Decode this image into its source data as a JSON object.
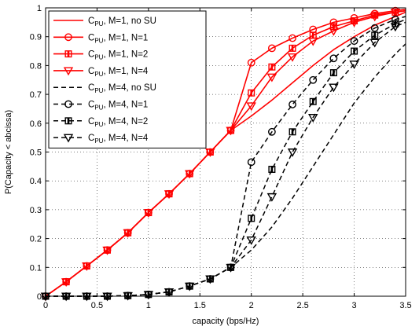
{
  "chart_data": {
    "type": "line",
    "xlabel": "capacity (bps/Hz)",
    "ylabel": "P(Capacity < abcissa)",
    "xlim": [
      0,
      3.5
    ],
    "ylim": [
      0,
      1
    ],
    "xticks": [
      0,
      0.5,
      1,
      1.5,
      2,
      2.5,
      3,
      3.5
    ],
    "xtick_labels": [
      "0",
      "0.5",
      "1",
      "1.5",
      "2",
      "2.5",
      "3",
      "3.5"
    ],
    "yticks": [
      0,
      0.1,
      0.2,
      0.3,
      0.4,
      0.5,
      0.6,
      0.7,
      0.8,
      0.9,
      1
    ],
    "ytick_labels": [
      "0",
      "0.1",
      "0.2",
      "0.3",
      "0.4",
      "0.5",
      "0.6",
      "0.7",
      "0.8",
      "0.9",
      "1"
    ],
    "grid": true,
    "legend_position": "top-left",
    "series": [
      {
        "name": "C_PU, M=1, no SU",
        "label_main": "C",
        "label_sub": "PU",
        "label_rest": ", M=1, no SU",
        "color": "#ff0000",
        "dash": "solid",
        "marker": "none",
        "x": [
          0,
          0.2,
          0.4,
          0.6,
          0.8,
          1.0,
          1.2,
          1.4,
          1.6,
          1.8,
          2.0,
          2.2,
          2.4,
          2.6,
          2.8,
          3.0,
          3.2,
          3.4,
          3.5
        ],
        "y": [
          0,
          0.05,
          0.105,
          0.16,
          0.22,
          0.29,
          0.355,
          0.425,
          0.5,
          0.575,
          0.625,
          0.68,
          0.74,
          0.8,
          0.855,
          0.9,
          0.94,
          0.97,
          0.985
        ]
      },
      {
        "name": "C_PU, M=1, N=1",
        "label_main": "C",
        "label_sub": "PU",
        "label_rest": ", M=1, N=1",
        "color": "#ff0000",
        "dash": "solid",
        "marker": "circle",
        "x": [
          0,
          0.2,
          0.4,
          0.6,
          0.8,
          1.0,
          1.2,
          1.4,
          1.6,
          1.8,
          2.0,
          2.2,
          2.4,
          2.6,
          2.8,
          3.0,
          3.2,
          3.4,
          3.5
        ],
        "y": [
          0,
          0.05,
          0.105,
          0.16,
          0.22,
          0.29,
          0.355,
          0.425,
          0.5,
          0.575,
          0.81,
          0.86,
          0.895,
          0.925,
          0.95,
          0.965,
          0.98,
          0.99,
          0.995
        ]
      },
      {
        "name": "C_PU, M=1, N=2",
        "label_main": "C",
        "label_sub": "PU",
        "label_rest": ", M=1, N=2",
        "color": "#ff0000",
        "dash": "solid",
        "marker": "square",
        "x": [
          0,
          0.2,
          0.4,
          0.6,
          0.8,
          1.0,
          1.2,
          1.4,
          1.6,
          1.8,
          2.0,
          2.2,
          2.4,
          2.6,
          2.8,
          3.0,
          3.2,
          3.4,
          3.5
        ],
        "y": [
          0,
          0.05,
          0.105,
          0.16,
          0.22,
          0.29,
          0.355,
          0.425,
          0.5,
          0.575,
          0.705,
          0.795,
          0.86,
          0.905,
          0.935,
          0.955,
          0.975,
          0.985,
          0.99
        ]
      },
      {
        "name": "C_PU, M=1, N=4",
        "label_main": "C",
        "label_sub": "PU",
        "label_rest": ", M=1, N=4",
        "color": "#ff0000",
        "dash": "solid",
        "marker": "triangle-down",
        "x": [
          0,
          0.2,
          0.4,
          0.6,
          0.8,
          1.0,
          1.2,
          1.4,
          1.6,
          1.8,
          2.0,
          2.2,
          2.4,
          2.6,
          2.8,
          3.0,
          3.2,
          3.4,
          3.5
        ],
        "y": [
          0,
          0.05,
          0.105,
          0.16,
          0.22,
          0.29,
          0.355,
          0.425,
          0.5,
          0.575,
          0.66,
          0.76,
          0.83,
          0.885,
          0.92,
          0.95,
          0.97,
          0.985,
          0.99
        ]
      },
      {
        "name": "C_PU, M=4, no SU",
        "label_main": "C",
        "label_sub": "PU",
        "label_rest": ", M=4, no SU",
        "color": "#000000",
        "dash": "dashed",
        "marker": "none",
        "x": [
          0,
          0.2,
          0.4,
          0.6,
          0.8,
          1.0,
          1.2,
          1.4,
          1.6,
          1.8,
          2.0,
          2.2,
          2.4,
          2.6,
          2.8,
          3.0,
          3.2,
          3.4,
          3.5
        ],
        "y": [
          0,
          0,
          0,
          0,
          0.002,
          0.006,
          0.015,
          0.035,
          0.06,
          0.1,
          0.16,
          0.24,
          0.34,
          0.45,
          0.56,
          0.67,
          0.76,
          0.84,
          0.875
        ]
      },
      {
        "name": "C_PU, M=4, N=1",
        "label_main": "C",
        "label_sub": "PU",
        "label_rest": ", M=4, N=1",
        "color": "#000000",
        "dash": "dashed",
        "marker": "circle",
        "x": [
          0,
          0.2,
          0.4,
          0.6,
          0.8,
          1.0,
          1.2,
          1.4,
          1.6,
          1.8,
          2.0,
          2.2,
          2.4,
          2.6,
          2.8,
          3.0,
          3.2,
          3.4,
          3.5
        ],
        "y": [
          0,
          0,
          0,
          0,
          0.002,
          0.006,
          0.015,
          0.035,
          0.06,
          0.1,
          0.465,
          0.57,
          0.665,
          0.75,
          0.825,
          0.885,
          0.93,
          0.96,
          0.97
        ]
      },
      {
        "name": "C_PU, M=4, N=2",
        "label_main": "C",
        "label_sub": "PU",
        "label_rest": ", M=4, N=2",
        "color": "#000000",
        "dash": "dashed",
        "marker": "square",
        "x": [
          0,
          0.2,
          0.4,
          0.6,
          0.8,
          1.0,
          1.2,
          1.4,
          1.6,
          1.8,
          2.0,
          2.2,
          2.4,
          2.6,
          2.8,
          3.0,
          3.2,
          3.4,
          3.5
        ],
        "y": [
          0,
          0,
          0,
          0,
          0.002,
          0.006,
          0.015,
          0.035,
          0.06,
          0.1,
          0.27,
          0.44,
          0.57,
          0.675,
          0.775,
          0.85,
          0.905,
          0.945,
          0.96
        ]
      },
      {
        "name": "C_PU, M=4, N=4",
        "label_main": "C",
        "label_sub": "PU",
        "label_rest": ", M=4, N=4",
        "color": "#000000",
        "dash": "dashed",
        "marker": "triangle-down",
        "x": [
          0,
          0.2,
          0.4,
          0.6,
          0.8,
          1.0,
          1.2,
          1.4,
          1.6,
          1.8,
          2.0,
          2.2,
          2.4,
          2.6,
          2.8,
          3.0,
          3.2,
          3.4,
          3.5
        ],
        "y": [
          0,
          0,
          0,
          0,
          0.002,
          0.006,
          0.015,
          0.035,
          0.06,
          0.1,
          0.195,
          0.345,
          0.5,
          0.62,
          0.725,
          0.805,
          0.88,
          0.935,
          0.95
        ]
      }
    ]
  }
}
